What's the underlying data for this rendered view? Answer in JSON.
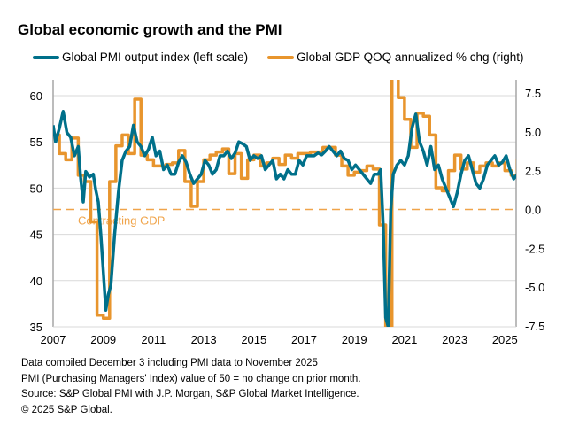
{
  "chart_data": {
    "type": "line",
    "title": "Global economic growth and the PMI",
    "xlabel": "",
    "ylabel_left": "",
    "ylabel_right": "",
    "x_ticks": [
      "2007",
      "2009",
      "2011",
      "2013",
      "2015",
      "2017",
      "2019",
      "2021",
      "2023",
      "2025"
    ],
    "xlim": [
      2007.0,
      2025.95
    ],
    "ylim_left": [
      35,
      62
    ],
    "ylim_right": [
      -7.5,
      8.5
    ],
    "y_ticks_left": [
      "35",
      "40",
      "45",
      "50",
      "55",
      "60"
    ],
    "y_ticks_right": [
      "-7.5",
      "-5.0",
      "-2.5",
      "0.0",
      "2.5",
      "5.0",
      "7.5"
    ],
    "grid": true,
    "legend_position": "top",
    "annotation": {
      "text": "Contracting GDP",
      "right_axis_value": 0.0
    },
    "series": [
      {
        "name": "Global PMI output index (left scale)",
        "axis": "left",
        "color": "#00708a",
        "x": [
          2007.0,
          2007.1,
          2007.25,
          2007.4,
          2007.55,
          2007.7,
          2007.85,
          2008.0,
          2008.1,
          2008.2,
          2008.3,
          2008.45,
          2008.6,
          2008.7,
          2008.8,
          2008.9,
          2009.0,
          2009.1,
          2009.2,
          2009.3,
          2009.45,
          2009.6,
          2009.75,
          2009.9,
          2010.05,
          2010.2,
          2010.35,
          2010.5,
          2010.65,
          2010.8,
          2010.95,
          2011.1,
          2011.25,
          2011.4,
          2011.55,
          2011.7,
          2011.85,
          2012.0,
          2012.15,
          2012.3,
          2012.45,
          2012.6,
          2012.75,
          2012.9,
          2013.05,
          2013.2,
          2013.35,
          2013.5,
          2013.65,
          2013.8,
          2013.95,
          2014.1,
          2014.25,
          2014.4,
          2014.55,
          2014.7,
          2014.85,
          2015.0,
          2015.15,
          2015.3,
          2015.45,
          2015.6,
          2015.75,
          2015.9,
          2016.05,
          2016.2,
          2016.35,
          2016.5,
          2016.65,
          2016.8,
          2016.95,
          2017.1,
          2017.25,
          2017.4,
          2017.55,
          2017.7,
          2017.85,
          2018.0,
          2018.15,
          2018.3,
          2018.45,
          2018.6,
          2018.75,
          2018.9,
          2019.05,
          2019.2,
          2019.35,
          2019.5,
          2019.65,
          2019.8,
          2019.95,
          2020.05,
          2020.15,
          2020.25,
          2020.35,
          2020.45,
          2020.55,
          2020.7,
          2020.85,
          2021.0,
          2021.15,
          2021.3,
          2021.45,
          2021.6,
          2021.75,
          2021.9,
          2022.05,
          2022.2,
          2022.35,
          2022.5,
          2022.65,
          2022.8,
          2022.95,
          2023.1,
          2023.25,
          2023.4,
          2023.55,
          2023.7,
          2023.85,
          2024.0,
          2024.15,
          2024.3,
          2024.45,
          2024.6,
          2024.75,
          2024.9,
          2025.05,
          2025.2,
          2025.35,
          2025.5,
          2025.65,
          2025.8,
          2025.9
        ],
        "values": [
          56.8,
          55.0,
          56.5,
          58.3,
          56.0,
          55.5,
          53.5,
          54.5,
          51.0,
          48.5,
          51.8,
          51.2,
          51.5,
          49.8,
          48.5,
          45.0,
          41.0,
          36.8,
          38.5,
          39.5,
          45.0,
          49.5,
          53.0,
          54.0,
          54.5,
          56.8,
          55.0,
          54.5,
          53.5,
          54.2,
          55.5,
          53.5,
          54.0,
          52.0,
          52.5,
          51.5,
          51.5,
          52.8,
          53.5,
          52.8,
          51.5,
          50.5,
          51.0,
          51.5,
          53.0,
          52.5,
          51.5,
          52.0,
          53.5,
          53.5,
          54.0,
          53.2,
          53.8,
          55.0,
          54.8,
          54.5,
          53.0,
          53.5,
          53.2,
          53.5,
          52.0,
          52.5,
          53.0,
          51.0,
          51.5,
          51.0,
          52.0,
          51.5,
          51.5,
          53.0,
          52.5,
          53.5,
          53.5,
          53.5,
          53.8,
          53.6,
          54.0,
          54.5,
          54.0,
          53.5,
          54.0,
          53.2,
          53.0,
          52.0,
          52.5,
          52.0,
          51.5,
          51.0,
          50.5,
          51.5,
          51.5,
          52.0,
          46.0,
          36.0,
          35.0,
          47.5,
          51.5,
          52.5,
          53.0,
          52.5,
          53.5,
          56.5,
          58.0,
          55.0,
          54.0,
          52.5,
          54.5,
          52.0,
          52.5,
          51.0,
          50.0,
          49.0,
          48.0,
          49.5,
          51.5,
          53.0,
          53.5,
          52.0,
          50.5,
          50.0,
          51.0,
          52.5,
          53.0,
          53.5,
          52.5,
          52.8,
          53.5,
          52.0,
          51.0,
          51.5,
          52.5,
          52.5,
          53.0
        ]
      },
      {
        "name": "Global GDP QOQ annualized % chg (right)",
        "axis": "right",
        "color": "#e8952d",
        "x": [
          2007.0,
          2007.25,
          2007.5,
          2007.75,
          2008.0,
          2008.25,
          2008.5,
          2008.75,
          2009.0,
          2009.25,
          2009.5,
          2009.75,
          2010.0,
          2010.25,
          2010.5,
          2010.75,
          2011.0,
          2011.25,
          2011.5,
          2011.75,
          2012.0,
          2012.25,
          2012.5,
          2012.75,
          2013.0,
          2013.25,
          2013.5,
          2013.75,
          2014.0,
          2014.25,
          2014.5,
          2014.75,
          2015.0,
          2015.25,
          2015.5,
          2015.75,
          2016.0,
          2016.25,
          2016.5,
          2016.75,
          2017.0,
          2017.25,
          2017.5,
          2017.75,
          2018.0,
          2018.25,
          2018.5,
          2018.75,
          2019.0,
          2019.25,
          2019.5,
          2019.75,
          2020.0,
          2020.25,
          2020.5,
          2020.75,
          2021.0,
          2021.25,
          2021.5,
          2021.75,
          2022.0,
          2022.25,
          2022.5,
          2022.75,
          2023.0,
          2023.25,
          2023.5,
          2023.75,
          2024.0,
          2024.25,
          2024.5,
          2024.75,
          2025.0,
          2025.25,
          2025.5,
          2025.75
        ],
        "values": [
          4.8,
          3.6,
          3.2,
          4.6,
          2.2,
          1.8,
          -0.8,
          -6.8,
          -7.0,
          1.8,
          4.1,
          4.8,
          3.6,
          7.1,
          3.5,
          3.2,
          2.8,
          2.8,
          2.9,
          3.0,
          3.8,
          1.8,
          0.2,
          1.8,
          3.2,
          3.5,
          3.7,
          3.9,
          2.3,
          3.6,
          2.0,
          3.2,
          3.5,
          2.8,
          3.0,
          3.3,
          2.9,
          3.5,
          3.3,
          3.6,
          3.6,
          3.7,
          3.7,
          4.0,
          4.0,
          3.5,
          2.8,
          2.2,
          2.4,
          2.5,
          2.8,
          2.6,
          -1.0,
          -7.8,
          9.0,
          7.2,
          5.8,
          4.0,
          6.2,
          6.0,
          4.8,
          1.4,
          1.2,
          2.5,
          3.5,
          2.6,
          3.0,
          2.4,
          2.8,
          3.0,
          2.8,
          3.0,
          2.5,
          2.2,
          3.2,
          2.8
        ]
      }
    ]
  },
  "legend": {
    "pmi_label": "Global PMI output index (left scale)",
    "gdp_label": "Global GDP QOQ annualized % chg (right)"
  },
  "notes": [
    "Data compiled December 3 including PMI data to November 2025",
    "PMI (Purchasing Managers' Index) value of 50 = no change on prior month.",
    "Source: S&P Global PMI with J.P. Morgan, S&P Global Market Intelligence.",
    "© 2025 S&P Global."
  ]
}
